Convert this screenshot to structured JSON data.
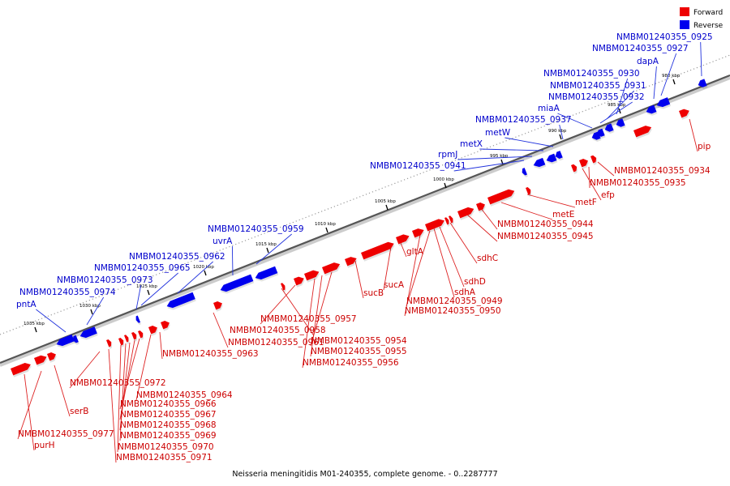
{
  "caption": "Neisseria meningitidis M01-240355, complete genome. - 0..2287777",
  "legend": [
    {
      "label": "Forward",
      "color": "#ee0000"
    },
    {
      "label": "Reverse",
      "color": "#0000ee"
    }
  ],
  "colors": {
    "forward": "#ee0000",
    "reverse": "#0000ee",
    "forward_label": "#cc0000",
    "reverse_label": "#0000cc"
  },
  "ticks": [
    "1035 kbp",
    "1030 kbp",
    "1025 kbp",
    "1020 kbp",
    "1015 kbp",
    "1010 kbp",
    "1005 kbp",
    "1000 kbp",
    "995 kbp",
    "990 kbp",
    "985 kbp",
    "980 kbp"
  ],
  "reverse_labels": [
    "NMBM01240355_0925",
    "NMBM01240355_0927",
    "dapA",
    "NMBM01240355_0930",
    "NMBM01240355_0931",
    "NMBM01240355_0932",
    "miaA",
    "NMBM01240355_0937",
    "metW",
    "metX",
    "rpmJ",
    "NMBM01240355_0941",
    "NMBM01240355_0959",
    "uvrA",
    "NMBM01240355_0962",
    "NMBM01240355_0965",
    "NMBM01240355_0973",
    "NMBM01240355_0974",
    "pntA"
  ],
  "forward_labels": [
    "pip",
    "NMBM01240355_0934",
    "NMBM01240355_0935",
    "efp",
    "metF",
    "metE",
    "NMBM01240355_0944",
    "NMBM01240355_0945",
    "sdhC",
    "sdhD",
    "sdhA",
    "NMBM01240355_0949",
    "NMBM01240355_0950",
    "gltA",
    "sucA",
    "sucB",
    "NMBM01240355_0954",
    "NMBM01240355_0955",
    "NMBM01240355_0956",
    "NMBM01240355_0957",
    "NMBM01240355_0958",
    "NMBM01240355_0961",
    "NMBM01240355_0963",
    "NMBM01240355_0964",
    "NMBM01240355_0966",
    "NMBM01240355_0967",
    "NMBM01240355_0968",
    "NMBM01240355_0969",
    "NMBM01240355_0970",
    "NMBM01240355_0971",
    "NMBM01240355_0972",
    "serB",
    "NMBM01240355_0977",
    "purH"
  ]
}
